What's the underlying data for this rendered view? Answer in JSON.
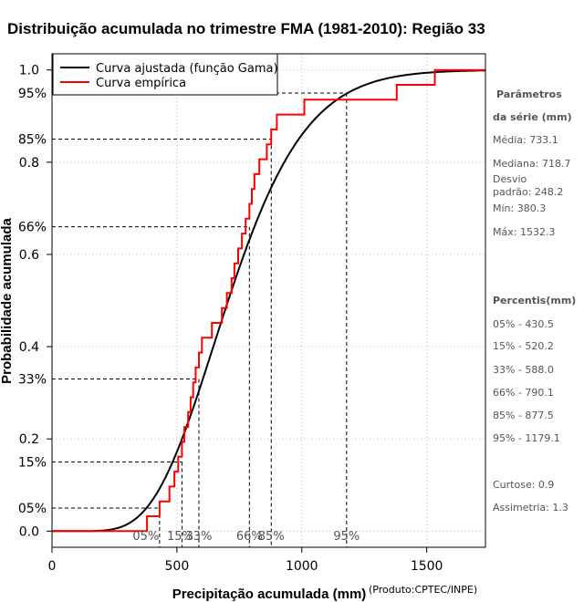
{
  "chart_data": {
    "type": "line",
    "title": "Distribuição acumulada no trimestre FMA (1981-2010): Região 33",
    "xlabel": "Precipitação acumulada (mm)",
    "ylabel": "Probabilidade acumulada",
    "credit": "(Produto:CPTEC/INPE)",
    "xlim": [
      0,
      1735
    ],
    "ylim": [
      -0.035,
      1.035
    ],
    "x_ticks": [
      0,
      500,
      1000,
      1500
    ],
    "y_ticks": [
      {
        "value": 0.0,
        "label": "0.0"
      },
      {
        "value": 0.2,
        "label": "0.2"
      },
      {
        "value": 0.4,
        "label": "0.4"
      },
      {
        "value": 0.6,
        "label": "0.6"
      },
      {
        "value": 0.8,
        "label": "0.8"
      },
      {
        "value": 1.0,
        "label": "1.0"
      }
    ],
    "legend": {
      "position": "top-left",
      "entries": [
        {
          "label": "Curva ajustada (função Gama)",
          "color": "#000000"
        },
        {
          "label": "Curva empírica",
          "color": "#ff0000"
        }
      ]
    },
    "gamma_fit": {
      "mean": 733.1,
      "sd": 248.2,
      "color": "#000000"
    },
    "empirical": {
      "color": "#ff0000",
      "x_min": 0,
      "x_max": 1735,
      "values": [
        380.3,
        430.5,
        470,
        490,
        505,
        520.2,
        530,
        545,
        555,
        565,
        575,
        588.0,
        600,
        640,
        680,
        700,
        718.7,
        730,
        745,
        760,
        775,
        790.1,
        800,
        810,
        830,
        860,
        877.5,
        900,
        1010,
        1380,
        1532.3
      ]
    },
    "percentiles": [
      {
        "label": "05%",
        "p": 0.05,
        "value": 430.5
      },
      {
        "label": "15%",
        "p": 0.15,
        "value": 520.2
      },
      {
        "label": "33%",
        "p": 0.33,
        "value": 588.0
      },
      {
        "label": "66%",
        "p": 0.66,
        "value": 790.1
      },
      {
        "label": "85%",
        "p": 0.85,
        "value": 877.5
      },
      {
        "label": "95%",
        "p": 0.95,
        "value": 1179.1
      }
    ],
    "side_panel": {
      "params_title_1": "Parâmetros",
      "params_title_2": "da série (mm)",
      "media": "Média: 733.1",
      "mediana": "Mediana: 718.7",
      "desvio_1": "Desvio",
      "desvio_2": "padrão: 248.2",
      "min": "Mín: 380.3",
      "max": "Máx: 1532.3",
      "percentis_title": "Percentis(mm)",
      "p05": "05% - 430.5",
      "p15": "15% - 520.2",
      "p33": "33% - 588.0",
      "p66": "66% - 790.1",
      "p85": "85% - 877.5",
      "p95": "95% - 1179.1",
      "curtose": "Curtose: 0.9",
      "assimetria": "Assimetria: 1.3"
    }
  }
}
